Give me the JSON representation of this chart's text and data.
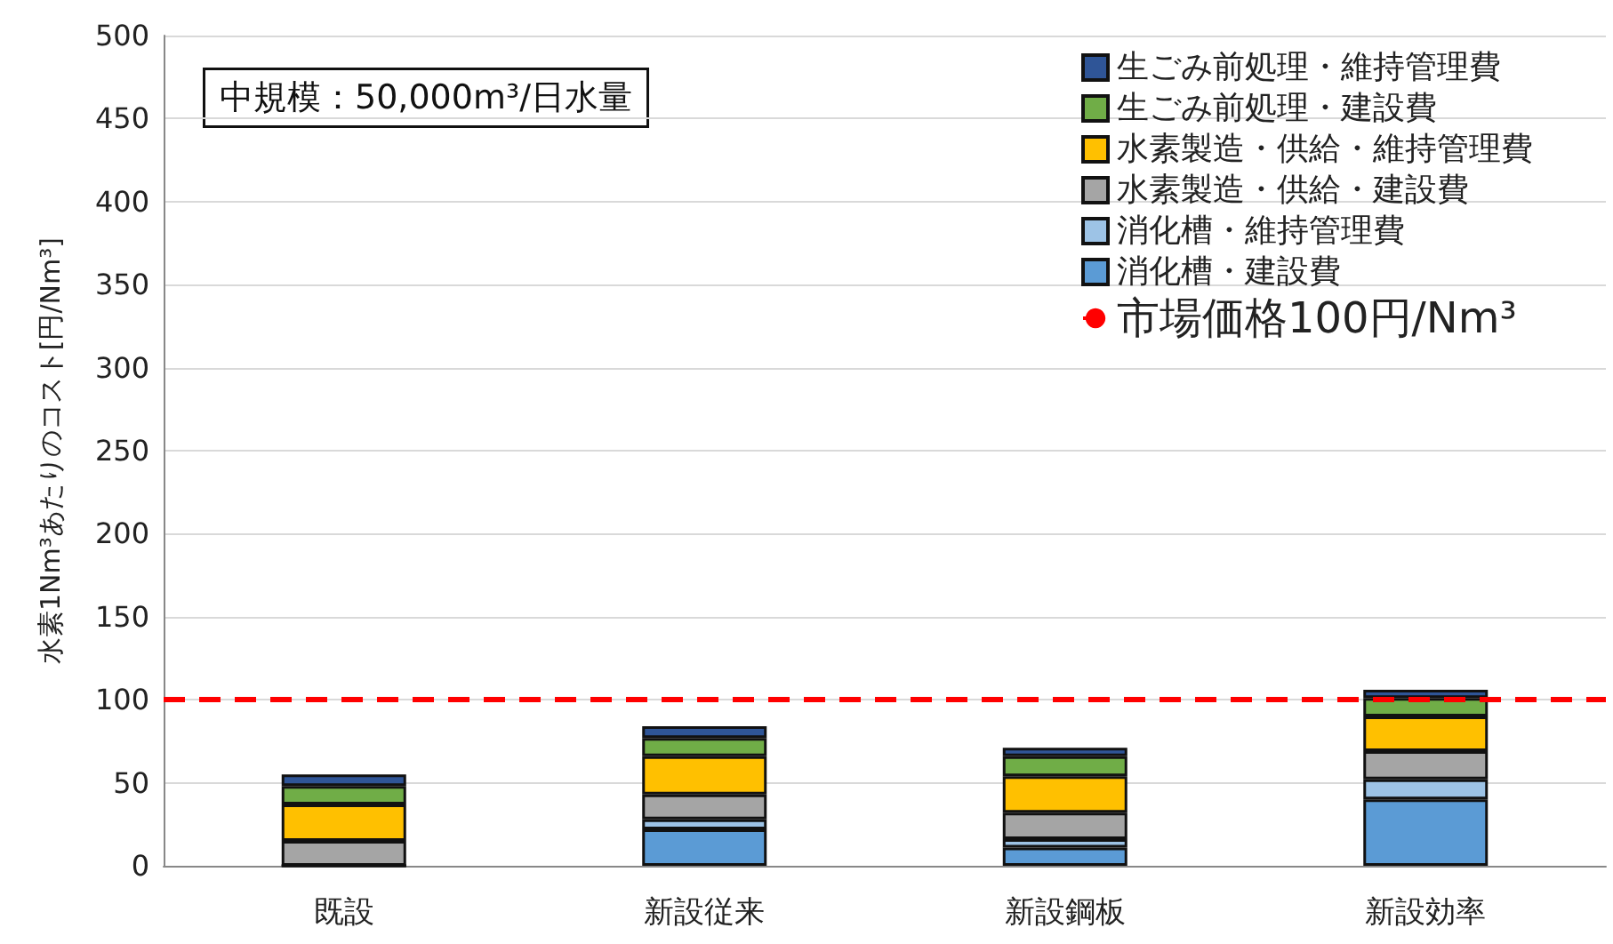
{
  "chart_data": {
    "type": "bar",
    "stacked": true,
    "ylabel": "水素1Nm³あたりのコスト[円/Nm³]",
    "annotations": [
      "中規模：50,000m³/日水量"
    ],
    "categories": [
      "既設",
      "新設従来",
      "新設鋼板",
      "新設効率"
    ],
    "series": [
      {
        "name": "消化槽・建設費",
        "color": "#5b9bd5",
        "values": [
          0,
          22,
          11,
          40
        ]
      },
      {
        "name": "消化槽・維持管理費",
        "color": "#9dc3e6",
        "values": [
          0,
          6,
          5,
          12
        ]
      },
      {
        "name": "水素製造・供給・建設費",
        "color": "#a5a5a5",
        "values": [
          15,
          15,
          16,
          17
        ]
      },
      {
        "name": "水素製造・供給・維持管理費",
        "color": "#ffc000",
        "values": [
          22,
          23,
          22,
          21
        ]
      },
      {
        "name": "生ごみ前処理・建設費",
        "color": "#70ad47",
        "values": [
          11,
          11,
          12,
          11
        ]
      },
      {
        "name": "生ごみ前処理・維持管理費",
        "color": "#2f5597",
        "values": [
          7,
          7,
          5,
          5
        ]
      }
    ],
    "ylim": [
      0,
      500
    ],
    "yticks": [
      0,
      50,
      100,
      150,
      200,
      250,
      300,
      350,
      400,
      450,
      500
    ],
    "grid": "y",
    "legend": "top right",
    "ref_lines": [
      {
        "axis": "y",
        "value": 100,
        "label": "市場価格100円/Nm³",
        "color": "#ff0000",
        "line_style": "dashed"
      }
    ]
  }
}
